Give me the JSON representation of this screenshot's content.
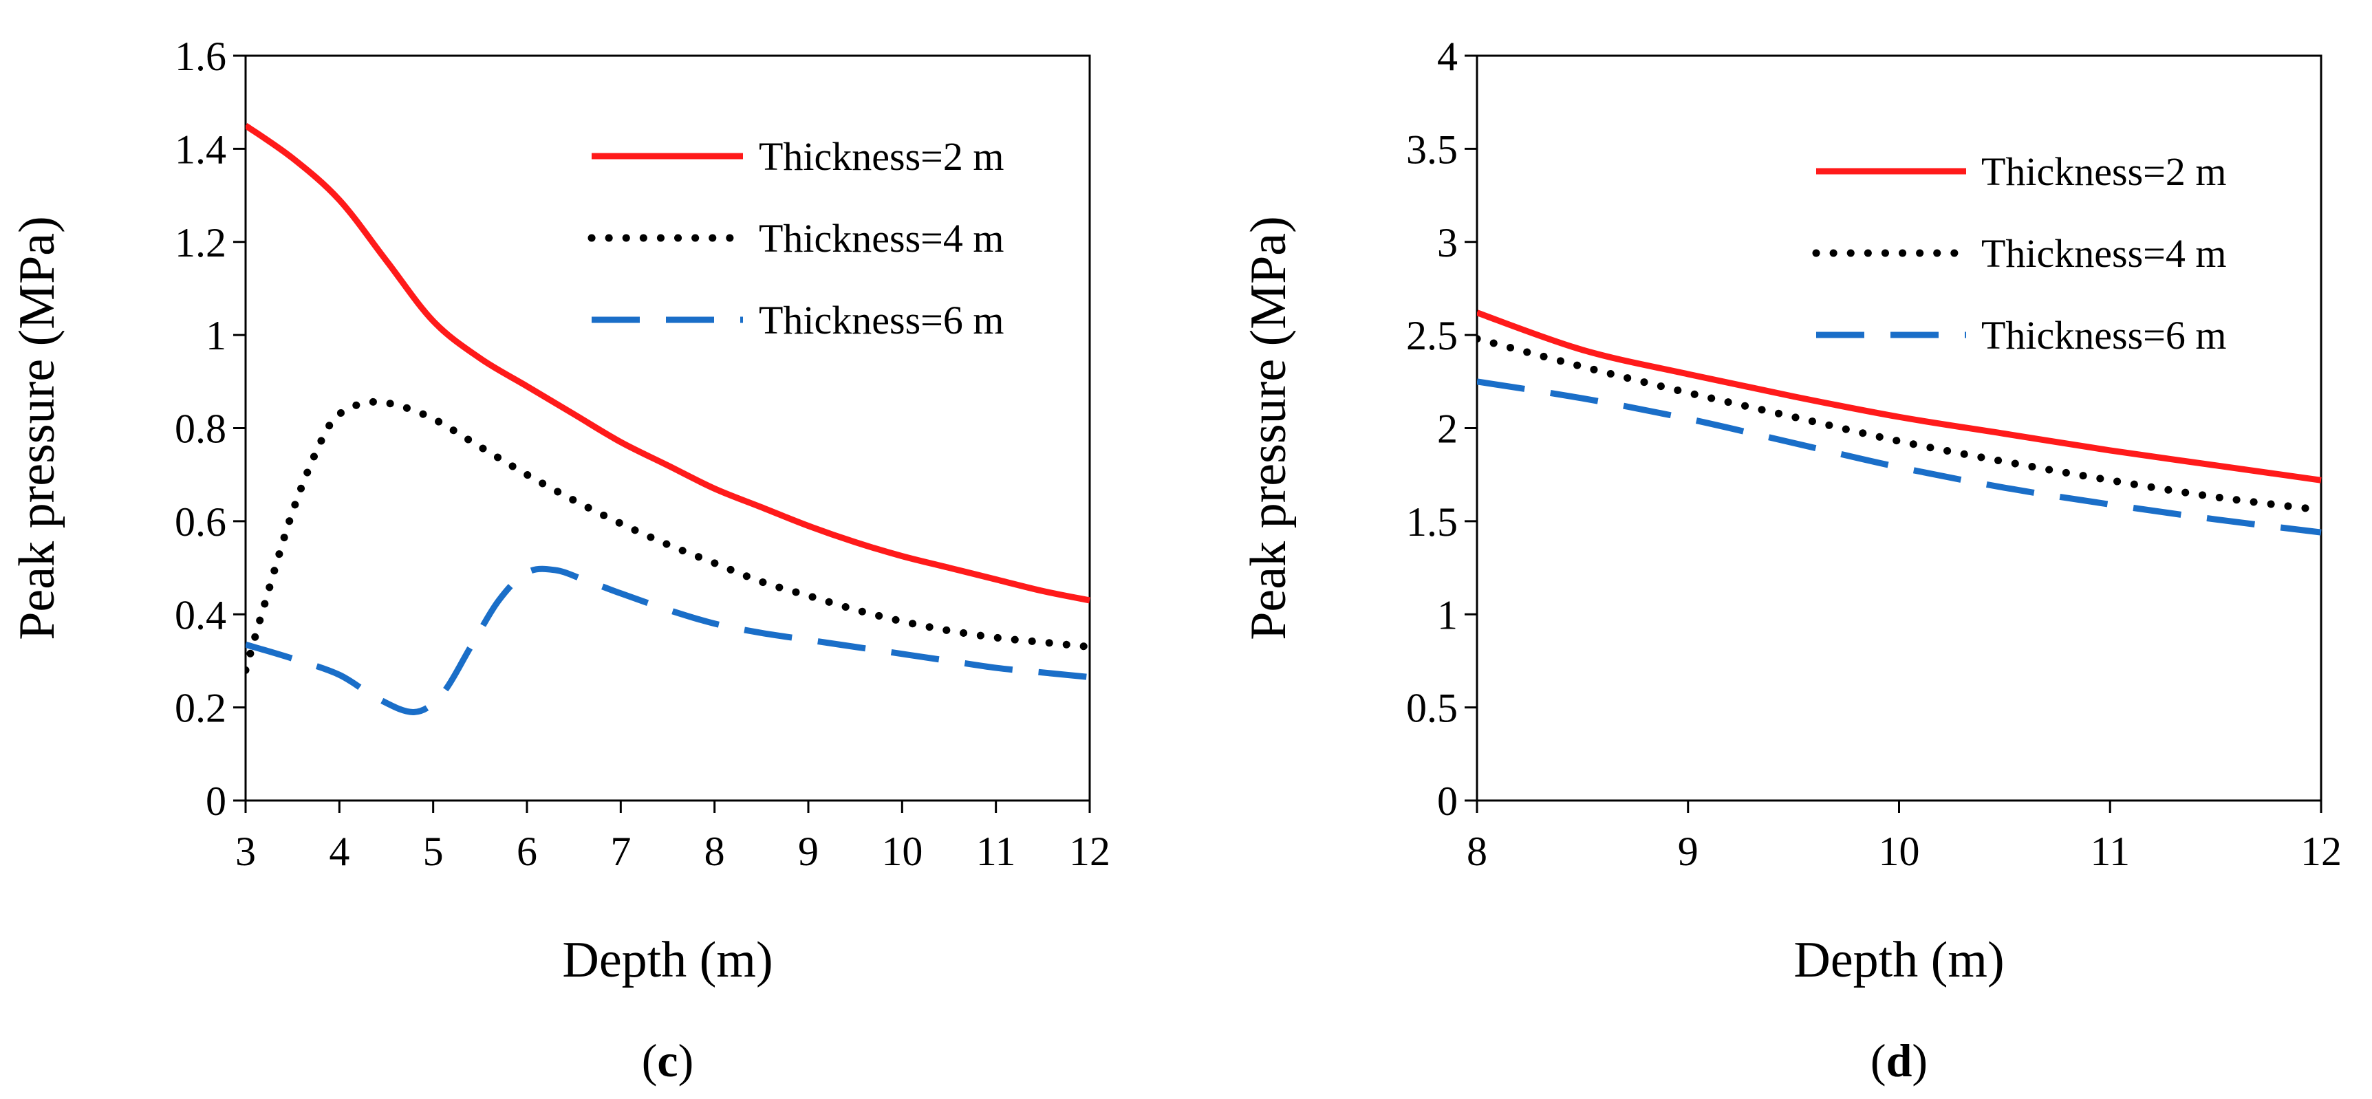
{
  "chart_data": [
    {
      "type": "line",
      "panel_label": "c",
      "xlabel": "Depth (m)",
      "ylabel": "Peak pressure (MPa)",
      "xlim": [
        3,
        12
      ],
      "ylim": [
        0,
        1.6
      ],
      "xticks": [
        3,
        4,
        5,
        6,
        7,
        8,
        9,
        10,
        11,
        12
      ],
      "yticks": [
        0,
        0.2,
        0.4,
        0.6,
        0.8,
        1,
        1.2,
        1.4,
        1.6
      ],
      "ytick_labels": [
        "0",
        "0.2",
        "0.4",
        "0.6",
        "0.8",
        "1",
        "1.2",
        "1.4",
        "1.6"
      ],
      "legend_position": "top-right",
      "series": [
        {
          "name": "Thickness=2 m",
          "style": "solid",
          "color": "#ff1a1a",
          "x": [
            3,
            3.5,
            4,
            4.5,
            5,
            5.5,
            6,
            6.5,
            7,
            7.5,
            8,
            8.5,
            9,
            9.5,
            10,
            10.5,
            11,
            11.5,
            12
          ],
          "y": [
            1.45,
            1.38,
            1.29,
            1.16,
            1.03,
            0.95,
            0.89,
            0.83,
            0.77,
            0.72,
            0.67,
            0.63,
            0.59,
            0.555,
            0.525,
            0.5,
            0.475,
            0.45,
            0.43
          ]
        },
        {
          "name": "Thickness=4 m",
          "style": "dotted",
          "color": "#000000",
          "x": [
            3,
            3.2,
            3.5,
            3.8,
            4,
            4.3,
            4.6,
            5,
            5.5,
            6,
            6.5,
            7,
            7.5,
            8,
            8.5,
            9,
            9.5,
            10,
            10.5,
            11,
            11.5,
            12
          ],
          "y": [
            0.28,
            0.42,
            0.62,
            0.77,
            0.83,
            0.855,
            0.85,
            0.82,
            0.76,
            0.7,
            0.645,
            0.595,
            0.55,
            0.51,
            0.47,
            0.44,
            0.41,
            0.385,
            0.365,
            0.35,
            0.34,
            0.33
          ]
        },
        {
          "name": "Thickness=6 m",
          "style": "dashed",
          "color": "#1a6ec8",
          "x": [
            3,
            3.5,
            4,
            4.4,
            4.8,
            5.1,
            5.4,
            5.7,
            6,
            6.3,
            6.6,
            7,
            7.5,
            8,
            8.5,
            9,
            9.5,
            10,
            10.5,
            11,
            11.5,
            12
          ],
          "y": [
            0.335,
            0.305,
            0.27,
            0.22,
            0.19,
            0.23,
            0.33,
            0.43,
            0.49,
            0.495,
            0.475,
            0.445,
            0.41,
            0.38,
            0.36,
            0.345,
            0.33,
            0.315,
            0.3,
            0.285,
            0.275,
            0.265
          ]
        }
      ]
    },
    {
      "type": "line",
      "panel_label": "d",
      "xlabel": "Depth (m)",
      "ylabel": "Peak pressure (MPa)",
      "xlim": [
        8,
        12
      ],
      "ylim": [
        0,
        4
      ],
      "xticks": [
        8,
        9,
        10,
        11,
        12
      ],
      "yticks": [
        0,
        0.5,
        1,
        1.5,
        2,
        2.5,
        3,
        3.5,
        4
      ],
      "ytick_labels": [
        "0",
        "0.5",
        "1",
        "1.5",
        "2",
        "2.5",
        "3",
        "3.5",
        "4"
      ],
      "legend_position": "top-right",
      "series": [
        {
          "name": "Thickness=2 m",
          "style": "solid",
          "color": "#ff1a1a",
          "x": [
            8,
            8.5,
            9,
            9.5,
            10,
            10.5,
            11,
            11.5,
            12
          ],
          "y": [
            2.62,
            2.42,
            2.29,
            2.17,
            2.06,
            1.97,
            1.88,
            1.8,
            1.72
          ]
        },
        {
          "name": "Thickness=4 m",
          "style": "dotted",
          "color": "#000000",
          "x": [
            8,
            8.5,
            9,
            9.5,
            10,
            10.5,
            11,
            11.5,
            12
          ],
          "y": [
            2.48,
            2.33,
            2.19,
            2.06,
            1.93,
            1.82,
            1.72,
            1.63,
            1.56
          ]
        },
        {
          "name": "Thickness=6 m",
          "style": "dashed",
          "color": "#1a6ec8",
          "x": [
            8,
            8.5,
            9,
            9.5,
            10,
            10.5,
            11,
            11.5,
            12
          ],
          "y": [
            2.25,
            2.16,
            2.05,
            1.92,
            1.79,
            1.68,
            1.59,
            1.51,
            1.44
          ]
        }
      ]
    }
  ]
}
